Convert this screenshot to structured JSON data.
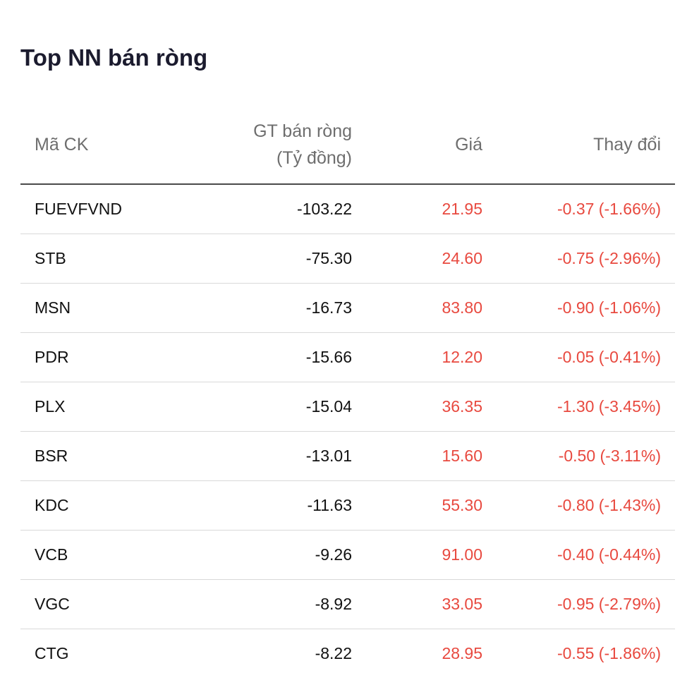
{
  "title": "Top NN bán ròng",
  "colors": {
    "down": "#e8493f",
    "text": "#111111",
    "header_text": "#6e6e6e"
  },
  "columns": {
    "symbol": "Mã CK",
    "net_sell_line1": "GT bán ròng",
    "net_sell_line2": "(Tỷ đồng)",
    "price": "Giá",
    "change": "Thay đổi"
  },
  "rows": [
    {
      "symbol": "FUEVFVND",
      "net_sell": "-103.22",
      "price": "21.95",
      "change": "-0.37 (-1.66%)"
    },
    {
      "symbol": "STB",
      "net_sell": "-75.30",
      "price": "24.60",
      "change": "-0.75 (-2.96%)"
    },
    {
      "symbol": "MSN",
      "net_sell": "-16.73",
      "price": "83.80",
      "change": "-0.90 (-1.06%)"
    },
    {
      "symbol": "PDR",
      "net_sell": "-15.66",
      "price": "12.20",
      "change": "-0.05 (-0.41%)"
    },
    {
      "symbol": "PLX",
      "net_sell": "-15.04",
      "price": "36.35",
      "change": "-1.30 (-3.45%)"
    },
    {
      "symbol": "BSR",
      "net_sell": "-13.01",
      "price": "15.60",
      "change": "-0.50 (-3.11%)"
    },
    {
      "symbol": "KDC",
      "net_sell": "-11.63",
      "price": "55.30",
      "change": "-0.80 (-1.43%)"
    },
    {
      "symbol": "VCB",
      "net_sell": "-9.26",
      "price": "91.00",
      "change": "-0.40 (-0.44%)"
    },
    {
      "symbol": "VGC",
      "net_sell": "-8.92",
      "price": "33.05",
      "change": "-0.95 (-2.79%)"
    },
    {
      "symbol": "CTG",
      "net_sell": "-8.22",
      "price": "28.95",
      "change": "-0.55 (-1.86%)"
    }
  ]
}
